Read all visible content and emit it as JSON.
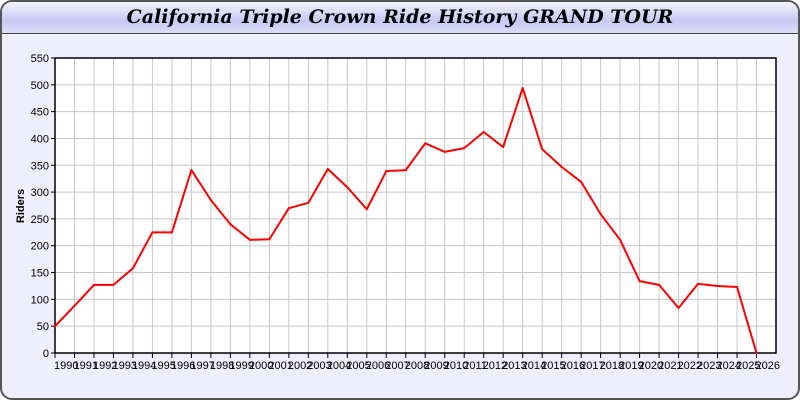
{
  "chart_data": {
    "type": "line",
    "title": "California Triple Crown Ride History GRAND TOUR",
    "xlabel": "",
    "ylabel": "Riders",
    "xlim": [
      1990,
      2027
    ],
    "ylim": [
      0,
      550
    ],
    "yticks": [
      0,
      50,
      100,
      150,
      200,
      250,
      300,
      350,
      400,
      450,
      500,
      550
    ],
    "grid": true,
    "series": [
      {
        "color": "#ff0000",
        "x": [
          1990,
          1991,
          1992,
          1993,
          1994,
          1995,
          1996,
          1997,
          1998,
          1999,
          2000,
          2001,
          2002,
          2003,
          2004,
          2005,
          2006,
          2007,
          2008,
          2009,
          2010,
          2011,
          2012,
          2013,
          2014,
          2015,
          2016,
          2017,
          2018,
          2019,
          2020,
          2021,
          2022,
          2023,
          2024,
          2025,
          2026
        ],
        "y": [
          50,
          88,
          127,
          127,
          158,
          225,
          225,
          341,
          285,
          240,
          211,
          212,
          270,
          280,
          343,
          309,
          268,
          339,
          341,
          391,
          375,
          382,
          412,
          384,
          494,
          380,
          347,
          319,
          259,
          211,
          134,
          127,
          84,
          129,
          125,
          123,
          0
        ]
      }
    ]
  }
}
